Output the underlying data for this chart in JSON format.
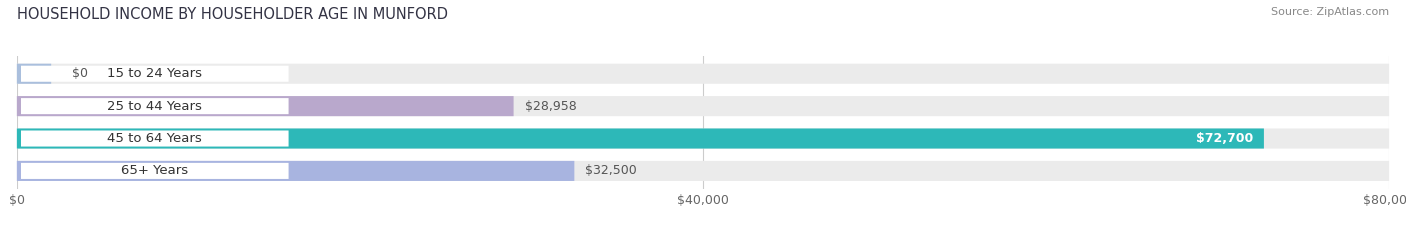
{
  "title": "HOUSEHOLD INCOME BY HOUSEHOLDER AGE IN MUNFORD",
  "source": "Source: ZipAtlas.com",
  "categories": [
    "15 to 24 Years",
    "25 to 44 Years",
    "45 to 64 Years",
    "65+ Years"
  ],
  "values": [
    0,
    28958,
    72700,
    32500
  ],
  "bar_colors": [
    "#aabfdd",
    "#b9a8cc",
    "#2db8b8",
    "#a8b4e0"
  ],
  "label_colors": [
    "#555555",
    "#555555",
    "#ffffff",
    "#555555"
  ],
  "value_labels": [
    "$0",
    "$28,958",
    "$72,700",
    "$32,500"
  ],
  "xlim": [
    0,
    80000
  ],
  "xticks": [
    0,
    40000,
    80000
  ],
  "xticklabels": [
    "$0",
    "$40,000",
    "$80,000"
  ],
  "background_color": "#ffffff",
  "bar_bg_color": "#ebebeb",
  "label_bg_color": "#ffffff",
  "title_fontsize": 10.5,
  "source_fontsize": 8,
  "label_fontsize": 9.5,
  "value_fontsize": 9,
  "tick_fontsize": 9,
  "bar_height": 0.62
}
